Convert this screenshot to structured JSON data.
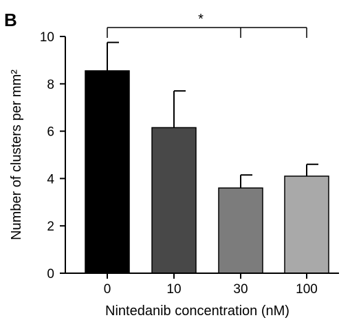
{
  "panel_label": "B",
  "chart_data": {
    "type": "bar",
    "categories": [
      "0",
      "10",
      "30",
      "100"
    ],
    "values": [
      8.55,
      6.15,
      3.6,
      4.1
    ],
    "errors": [
      1.2,
      1.55,
      0.55,
      0.5
    ],
    "bar_colors": [
      "#000000",
      "#484848",
      "#7c7c7c",
      "#a9a9a9"
    ],
    "xlabel": "Nintedanib concentration (nM)",
    "ylabel": "Number of clusters per mm²",
    "ylim": [
      0,
      10
    ],
    "yticks": [
      "0",
      "2",
      "4",
      "6",
      "8",
      "10"
    ],
    "grid": false,
    "significance": {
      "label": "*",
      "from_category": "0",
      "to_categories": [
        "30",
        "100"
      ]
    }
  }
}
